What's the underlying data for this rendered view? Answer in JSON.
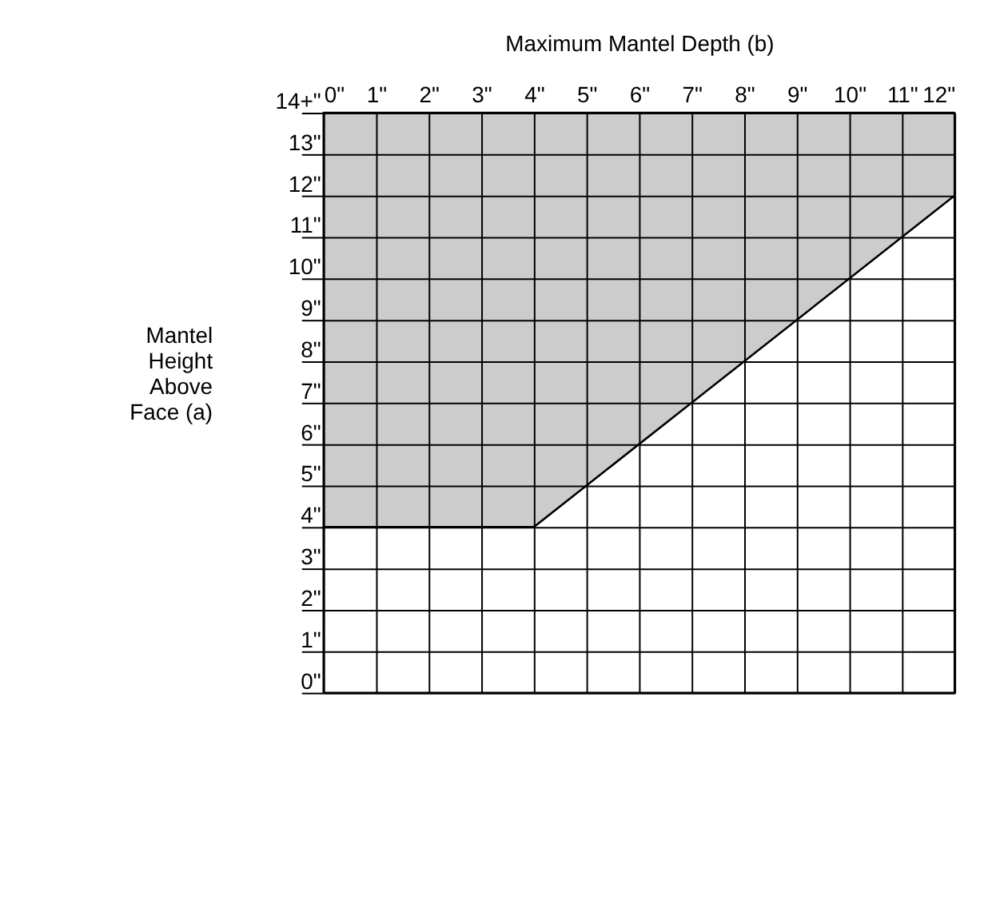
{
  "chart_data": {
    "type": "area",
    "xlabel": "Maximum Mantel Depth (b)",
    "ylabel": "Mantel\nHeight\nAbove\nFace (a)",
    "x": [
      0,
      4,
      12
    ],
    "stacked": true,
    "series": [
      {
        "color": "#ffffff",
        "values": [
          4,
          4,
          12
        ]
      },
      {
        "color": "#cccccc",
        "values": [
          10,
          10,
          2
        ]
      }
    ],
    "xlim": [
      0,
      12
    ],
    "ylim": [
      0,
      14
    ],
    "xticks": [
      {
        "value": 0,
        "label": "0\""
      },
      {
        "value": 1,
        "label": "1\""
      },
      {
        "value": 2,
        "label": "2\""
      },
      {
        "value": 3,
        "label": "3\""
      },
      {
        "value": 4,
        "label": "4\""
      },
      {
        "value": 5,
        "label": "5\""
      },
      {
        "value": 6,
        "label": "6\""
      },
      {
        "value": 7,
        "label": "7\""
      },
      {
        "value": 8,
        "label": "8\""
      },
      {
        "value": 9,
        "label": "9\""
      },
      {
        "value": 10,
        "label": "10\""
      },
      {
        "value": 11,
        "label": "11\""
      },
      {
        "value": 12,
        "label": "12\""
      }
    ],
    "yticks": [
      {
        "value": 0,
        "label": "0\""
      },
      {
        "value": 1,
        "label": "1\""
      },
      {
        "value": 2,
        "label": "2\""
      },
      {
        "value": 3,
        "label": "3\""
      },
      {
        "value": 4,
        "label": "4\""
      },
      {
        "value": 5,
        "label": "5\""
      },
      {
        "value": 6,
        "label": "6\""
      },
      {
        "value": 7,
        "label": "7\""
      },
      {
        "value": 8,
        "label": "8\""
      },
      {
        "value": 9,
        "label": "9\""
      },
      {
        "value": 10,
        "label": "10\""
      },
      {
        "value": 11,
        "label": "11\""
      },
      {
        "value": 12,
        "label": "12\""
      },
      {
        "value": 13,
        "label": "13\""
      },
      {
        "value": 14,
        "label": "14+\""
      }
    ],
    "grid": true
  }
}
